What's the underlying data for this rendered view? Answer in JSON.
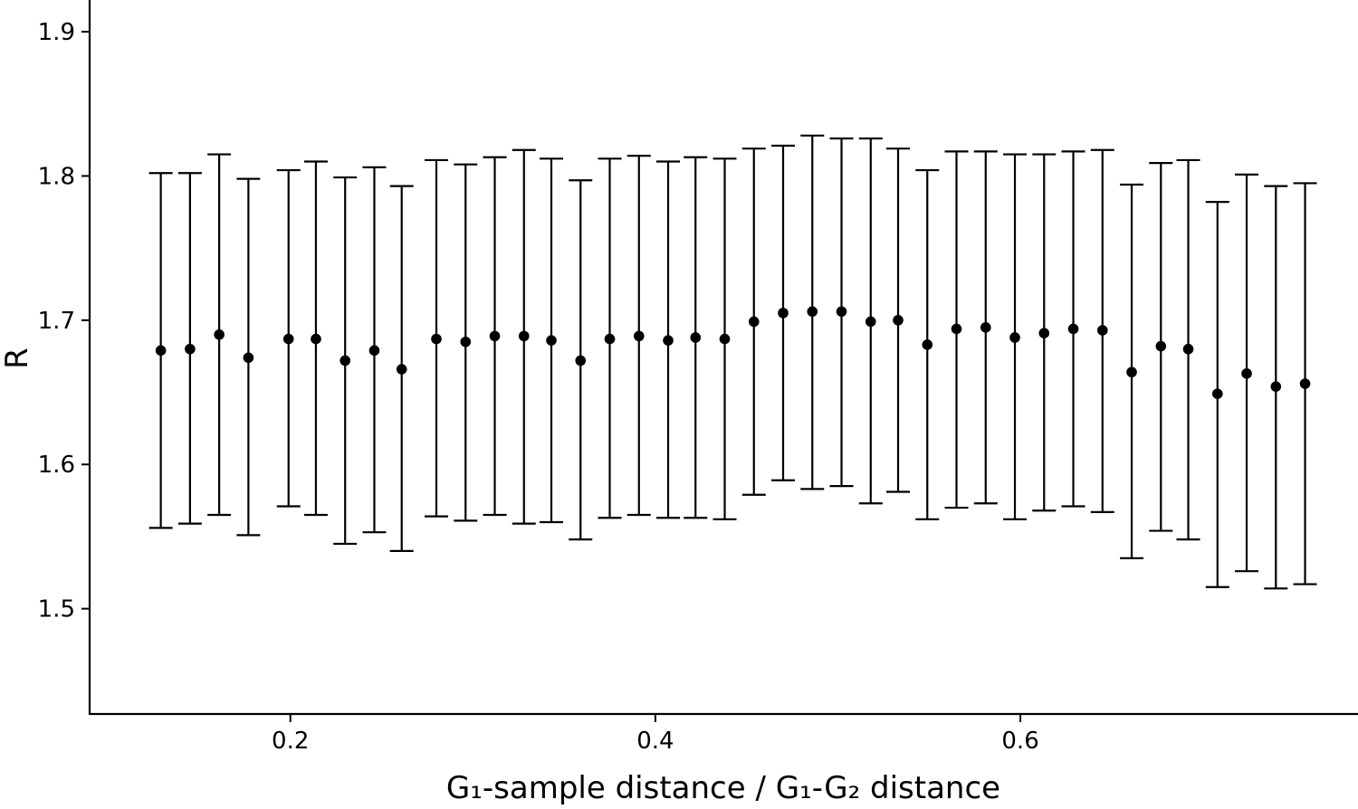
{
  "chart_data": {
    "type": "scatter",
    "error_bars": true,
    "title": "",
    "xlabel": "G₁-sample distance / G₁-G₂ distance",
    "ylabel": "R",
    "xlim": [
      0.09,
      0.785
    ],
    "ylim": [
      1.427,
      1.922
    ],
    "xticks": [
      0.2,
      0.4,
      0.6
    ],
    "xtick_labels": [
      "0.2",
      "0.4",
      "0.6"
    ],
    "yticks": [
      1.5,
      1.6,
      1.7,
      1.8,
      1.9
    ],
    "ytick_labels": [
      "1.5",
      "1.6",
      "1.7",
      "1.8",
      "1.9"
    ],
    "grid": false,
    "legend": "none",
    "marker_color": "#000000",
    "errorbar_color": "#000000",
    "series": [
      {
        "x": [
          0.129,
          0.145,
          0.161,
          0.177,
          0.199,
          0.214,
          0.23,
          0.246,
          0.261,
          0.28,
          0.296,
          0.312,
          0.328,
          0.343,
          0.359,
          0.375,
          0.391,
          0.407,
          0.422,
          0.438,
          0.454,
          0.47,
          0.486,
          0.502,
          0.518,
          0.533,
          0.549,
          0.565,
          0.581,
          0.597,
          0.613,
          0.629,
          0.645,
          0.661,
          0.677,
          0.692,
          0.708,
          0.724,
          0.74,
          0.756
        ],
        "y": [
          1.679,
          1.68,
          1.69,
          1.674,
          1.687,
          1.687,
          1.672,
          1.679,
          1.666,
          1.687,
          1.685,
          1.689,
          1.689,
          1.686,
          1.672,
          1.687,
          1.689,
          1.686,
          1.688,
          1.687,
          1.699,
          1.705,
          1.706,
          1.706,
          1.699,
          1.7,
          1.683,
          1.694,
          1.695,
          1.688,
          1.691,
          1.694,
          1.693,
          1.664,
          1.682,
          1.68,
          1.649,
          1.663,
          1.654,
          1.656
        ],
        "y_low": [
          1.556,
          1.559,
          1.565,
          1.551,
          1.571,
          1.565,
          1.545,
          1.553,
          1.54,
          1.564,
          1.561,
          1.565,
          1.559,
          1.56,
          1.548,
          1.563,
          1.565,
          1.563,
          1.563,
          1.562,
          1.579,
          1.589,
          1.583,
          1.585,
          1.573,
          1.581,
          1.562,
          1.57,
          1.573,
          1.562,
          1.568,
          1.571,
          1.567,
          1.535,
          1.554,
          1.548,
          1.515,
          1.526,
          1.514,
          1.517
        ],
        "y_high": [
          1.802,
          1.802,
          1.815,
          1.798,
          1.804,
          1.81,
          1.799,
          1.806,
          1.793,
          1.811,
          1.808,
          1.813,
          1.818,
          1.812,
          1.797,
          1.812,
          1.814,
          1.81,
          1.813,
          1.812,
          1.819,
          1.821,
          1.828,
          1.826,
          1.826,
          1.819,
          1.804,
          1.817,
          1.817,
          1.815,
          1.815,
          1.817,
          1.818,
          1.794,
          1.809,
          1.811,
          1.782,
          1.801,
          1.793,
          1.795
        ]
      }
    ]
  }
}
